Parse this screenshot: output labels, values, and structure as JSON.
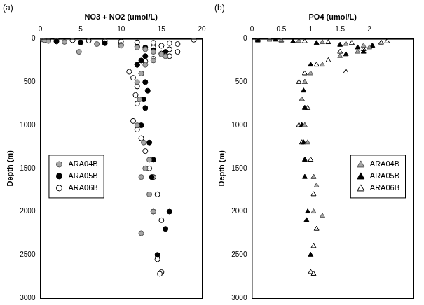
{
  "chart_data": [
    {
      "type": "scatter",
      "title": "(a)",
      "x_label": "NO3 + NO2 (umol/L)",
      "y_label": "Depth (m)",
      "xlim": [
        0,
        20
      ],
      "xticks": [
        0,
        5,
        10,
        15,
        20
      ],
      "ylim": [
        0,
        3000
      ],
      "yticks": [
        0,
        500,
        1000,
        1500,
        2000,
        2500,
        3000
      ],
      "grid": false,
      "legend": "center left",
      "series": [
        {
          "name": "ARA04B",
          "color": "#a6a6a6",
          "marker": "circle",
          "x": [
            0.2,
            0.5,
            1,
            3,
            4.8,
            7,
            10,
            12,
            13,
            14,
            15,
            15.5,
            14,
            13,
            12.5,
            12,
            12.3,
            12,
            12.8,
            13.5,
            13,
            12.5,
            13.5,
            14,
            12.5
          ],
          "values": [
            5,
            15,
            25,
            35,
            150,
            60,
            80,
            100,
            120,
            150,
            180,
            200,
            250,
            300,
            400,
            500,
            700,
            1000,
            1200,
            1400,
            1500,
            1600,
            1800,
            2000,
            2250
          ]
        },
        {
          "name": "ARA05B",
          "color": "#000000",
          "marker": "circle",
          "x": [
            0.5,
            1,
            2,
            5,
            8,
            10,
            12,
            13,
            14,
            15.5,
            13,
            12.5,
            12,
            12.5,
            13,
            13.3,
            12.8,
            13,
            12.5,
            13.5,
            14,
            13.8,
            16,
            15.5,
            14.5
          ],
          "values": [
            10,
            20,
            30,
            40,
            50,
            70,
            90,
            100,
            130,
            150,
            200,
            250,
            300,
            400,
            500,
            600,
            700,
            800,
            1000,
            1200,
            1400,
            1600,
            2000,
            2200,
            2500
          ]
        },
        {
          "name": "ARA06B",
          "color": "#ffffff",
          "marker": "circle",
          "x": [
            0.2,
            1,
            2,
            4,
            6,
            8,
            10,
            12,
            14,
            16,
            17,
            19,
            15,
            14,
            16,
            17,
            15,
            16,
            14,
            13,
            12,
            11,
            11.5,
            12,
            11.8,
            12,
            11.5,
            12,
            12.5,
            13,
            13.5,
            14,
            14.5,
            14,
            15,
            14.5,
            15,
            14.8
          ],
          "values": [
            0,
            5,
            10,
            15,
            20,
            25,
            30,
            40,
            45,
            50,
            60,
            10,
            80,
            100,
            120,
            150,
            170,
            200,
            230,
            260,
            300,
            380,
            450,
            550,
            650,
            750,
            950,
            1050,
            1150,
            1300,
            1500,
            1600,
            1800,
            2000,
            2100,
            2550,
            2700,
            2720
          ]
        }
      ]
    },
    {
      "type": "scatter",
      "title": "(b)",
      "x_label": "PO4 (umol/L)",
      "y_label": "Depth (m)",
      "xlim": [
        0,
        2.75
      ],
      "xticks": [
        0,
        0.5,
        1,
        1.5,
        2
      ],
      "ylim": [
        0,
        3000
      ],
      "yticks": [
        0,
        500,
        1000,
        1500,
        2000,
        2500,
        3000
      ],
      "grid": false,
      "legend": "center right",
      "series": [
        {
          "name": "ARA04B",
          "color": "#a6a6a6",
          "marker": "triangle",
          "x": [
            0.3,
            0.5,
            0.8,
            1.2,
            1.6,
            1.9,
            2,
            1.8,
            1.5,
            1.2,
            1,
            0.9,
            0.85,
            0.9,
            0.95,
            1.05,
            1.1,
            1.05,
            1.2
          ],
          "values": [
            5,
            15,
            25,
            40,
            60,
            80,
            100,
            150,
            200,
            300,
            400,
            500,
            700,
            1000,
            1200,
            1600,
            1700,
            2000,
            2050
          ]
        },
        {
          "name": "ARA05B",
          "color": "#000000",
          "marker": "triangle",
          "x": [
            0.1,
            0.4,
            0.7,
            1.1,
            1.5,
            1.8,
            2.05,
            1.9,
            1.6,
            1,
            0.9,
            0.88,
            0.9,
            0.85,
            0.88,
            0.9,
            0.9,
            0.95,
            0.93,
            1
          ],
          "values": [
            20,
            10,
            30,
            50,
            70,
            100,
            80,
            150,
            180,
            300,
            500,
            600,
            800,
            1000,
            1200,
            1400,
            1600,
            2000,
            2100,
            2500
          ]
        },
        {
          "name": "ARA06B",
          "color": "#ffffff",
          "marker": "triangle",
          "x": [
            0.1,
            0.3,
            0.5,
            0.9,
            1.3,
            1.7,
            2.2,
            2.3,
            1.9,
            1.5,
            1.6,
            1.3,
            1.1,
            0.9,
            0.8,
            0.85,
            0.95,
            0.8,
            0.85,
            1,
            1.05,
            1.05,
            1.1,
            1.05,
            1,
            1.05
          ],
          "values": [
            0,
            10,
            20,
            30,
            40,
            50,
            45,
            30,
            120,
            150,
            380,
            250,
            300,
            400,
            500,
            700,
            800,
            1000,
            1200,
            1400,
            1600,
            1800,
            2200,
            2400,
            2700,
            2720
          ]
        }
      ]
    }
  ]
}
